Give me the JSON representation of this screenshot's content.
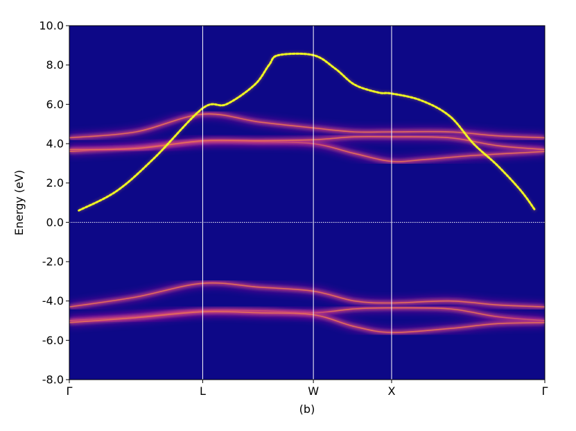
{
  "chart_data": {
    "type": "heatmap",
    "caption": "(b)",
    "ylabel": "Energy (eV)",
    "ylim": [
      -8.0,
      10.0
    ],
    "yticks": [
      "-8.0",
      "-6.0",
      "-4.0",
      "-2.0",
      "0.0",
      "2.0",
      "4.0",
      "6.0",
      "8.0",
      "10.0"
    ],
    "ytick_values": [
      -8,
      -6,
      -4,
      -2,
      0,
      2,
      4,
      6,
      8,
      10
    ],
    "kpath": [
      {
        "label": "Γ",
        "k": 0.0
      },
      {
        "label": "L",
        "k": 0.2805
      },
      {
        "label": "W",
        "k": 0.5133
      },
      {
        "label": "X",
        "k": 0.6778
      },
      {
        "label": "Γ",
        "k": 1.0
      }
    ],
    "fermi_level": 0.0,
    "colormap": "plasma",
    "background_color": "#0d0887",
    "bright_color": "#f0f921",
    "bands": [
      {
        "name": "cond-a",
        "points": [
          [
            0.0,
            4.3
          ],
          [
            0.14,
            4.6
          ],
          [
            0.2805,
            5.5
          ],
          [
            0.4,
            5.1
          ],
          [
            0.5133,
            4.8
          ],
          [
            0.6,
            4.6
          ],
          [
            0.6778,
            4.6
          ],
          [
            0.8,
            4.6
          ],
          [
            0.9,
            4.4
          ],
          [
            1.0,
            4.3
          ]
        ]
      },
      {
        "name": "cond-b",
        "points": [
          [
            0.0,
            3.6
          ],
          [
            0.14,
            3.8
          ],
          [
            0.2805,
            4.1
          ],
          [
            0.4,
            4.1
          ],
          [
            0.5133,
            4.0
          ],
          [
            0.6,
            3.5
          ],
          [
            0.6778,
            3.1
          ],
          [
            0.75,
            3.2
          ],
          [
            0.85,
            3.4
          ],
          [
            1.0,
            3.6
          ]
        ]
      },
      {
        "name": "cond-c",
        "points": [
          [
            0.0,
            3.7
          ],
          [
            0.14,
            3.75
          ],
          [
            0.2805,
            4.15
          ],
          [
            0.4,
            4.15
          ],
          [
            0.5133,
            4.2
          ],
          [
            0.6,
            4.35
          ],
          [
            0.6778,
            4.35
          ],
          [
            0.8,
            4.3
          ],
          [
            0.9,
            3.9
          ],
          [
            1.0,
            3.7
          ]
        ]
      },
      {
        "name": "val-a",
        "points": [
          [
            0.0,
            -4.3
          ],
          [
            0.14,
            -3.8
          ],
          [
            0.2805,
            -3.1
          ],
          [
            0.4,
            -3.3
          ],
          [
            0.5133,
            -3.5
          ],
          [
            0.6,
            -4.0
          ],
          [
            0.6778,
            -4.1
          ],
          [
            0.8,
            -4.0
          ],
          [
            0.9,
            -4.2
          ],
          [
            1.0,
            -4.3
          ]
        ]
      },
      {
        "name": "val-b",
        "points": [
          [
            0.0,
            -5.0
          ],
          [
            0.14,
            -4.8
          ],
          [
            0.2805,
            -4.5
          ],
          [
            0.4,
            -4.5
          ],
          [
            0.5133,
            -4.6
          ],
          [
            0.6,
            -4.4
          ],
          [
            0.6778,
            -4.35
          ],
          [
            0.8,
            -4.4
          ],
          [
            0.9,
            -4.8
          ],
          [
            1.0,
            -5.0
          ]
        ]
      },
      {
        "name": "val-c",
        "points": [
          [
            0.0,
            -5.1
          ],
          [
            0.14,
            -4.85
          ],
          [
            0.2805,
            -4.55
          ],
          [
            0.4,
            -4.6
          ],
          [
            0.5133,
            -4.7
          ],
          [
            0.6,
            -5.3
          ],
          [
            0.6778,
            -5.6
          ],
          [
            0.8,
            -5.4
          ],
          [
            0.9,
            -5.15
          ],
          [
            1.0,
            -5.1
          ]
        ]
      }
    ],
    "bright_band": {
      "points": [
        [
          0.02,
          0.6
        ],
        [
          0.1,
          1.6
        ],
        [
          0.18,
          3.3
        ],
        [
          0.2805,
          5.8
        ],
        [
          0.33,
          6.0
        ],
        [
          0.39,
          7.0
        ],
        [
          0.42,
          8.0
        ],
        [
          0.44,
          8.5
        ],
        [
          0.5133,
          8.5
        ],
        [
          0.56,
          7.8
        ],
        [
          0.6,
          7.0
        ],
        [
          0.65,
          6.6
        ],
        [
          0.6778,
          6.55
        ],
        [
          0.74,
          6.2
        ],
        [
          0.8,
          5.4
        ],
        [
          0.85,
          4.0
        ],
        [
          0.9,
          2.9
        ],
        [
          0.95,
          1.6
        ],
        [
          0.98,
          0.6
        ]
      ]
    }
  }
}
